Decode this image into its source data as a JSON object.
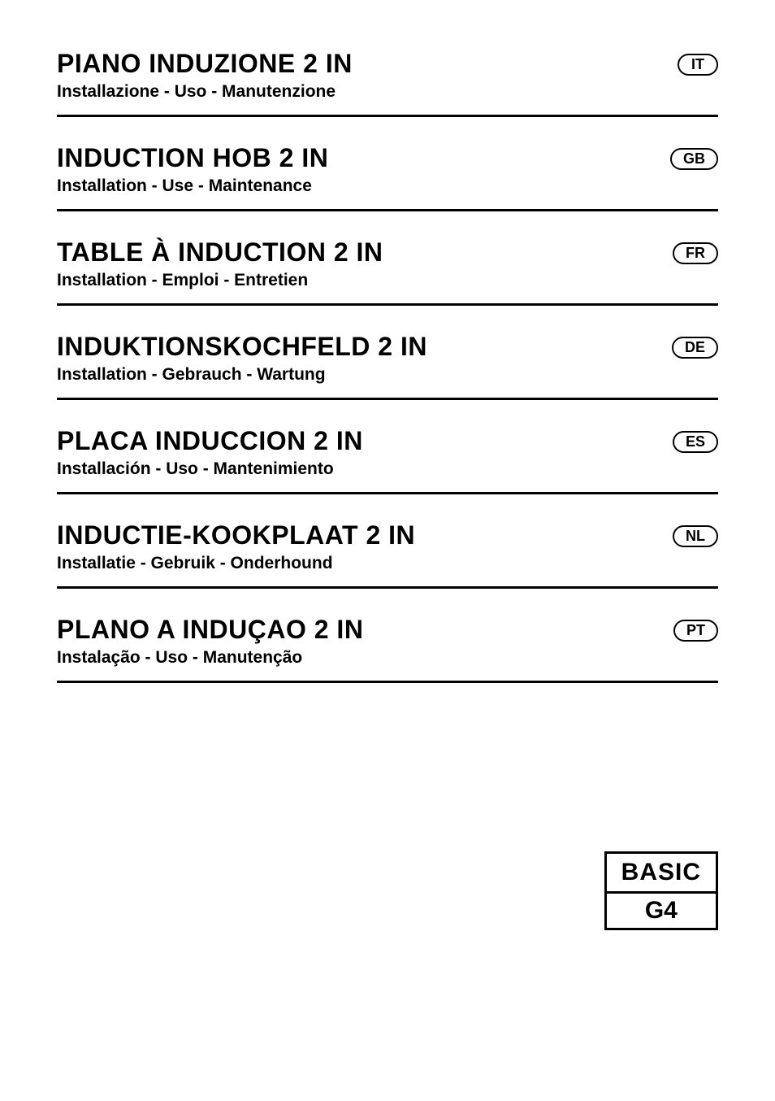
{
  "entries": [
    {
      "title": "PIANO INDUZIONE 2 IN",
      "subtitle": "Installazione - Uso - Manutenzione",
      "lang": "IT"
    },
    {
      "title": "INDUCTION HOB 2 IN",
      "subtitle": "Installation - Use - Maintenance",
      "lang": "GB"
    },
    {
      "title": "TABLE À INDUCTION 2 IN",
      "subtitle": "Installation - Emploi - Entretien",
      "lang": "FR"
    },
    {
      "title": "INDUKTIONSKOCHFELD 2 IN",
      "subtitle": "Installation - Gebrauch - Wartung",
      "lang": "DE"
    },
    {
      "title": "PLACA INDUCCION 2 IN",
      "subtitle": "Installación - Uso - Mantenimiento",
      "lang": "ES"
    },
    {
      "title": "INDUCTIE-KOOKPLAAT 2 IN",
      "subtitle": "Installatie - Gebruik - Onderhound",
      "lang": "NL"
    },
    {
      "title": "PLANO A INDUÇAO 2 IN",
      "subtitle": "Instalação - Uso - Manutenção",
      "lang": "PT"
    }
  ],
  "model": {
    "top": "BASIC",
    "bottom": "G4"
  },
  "colors": {
    "text": "#000000",
    "background": "#ffffff",
    "border": "#000000"
  },
  "typography": {
    "title_fontsize": 32,
    "title_weight": 900,
    "subtitle_fontsize": 21,
    "subtitle_weight": 700,
    "badge_fontsize": 18,
    "badge_weight": 700,
    "model_fontsize": 30,
    "model_weight": 900
  }
}
